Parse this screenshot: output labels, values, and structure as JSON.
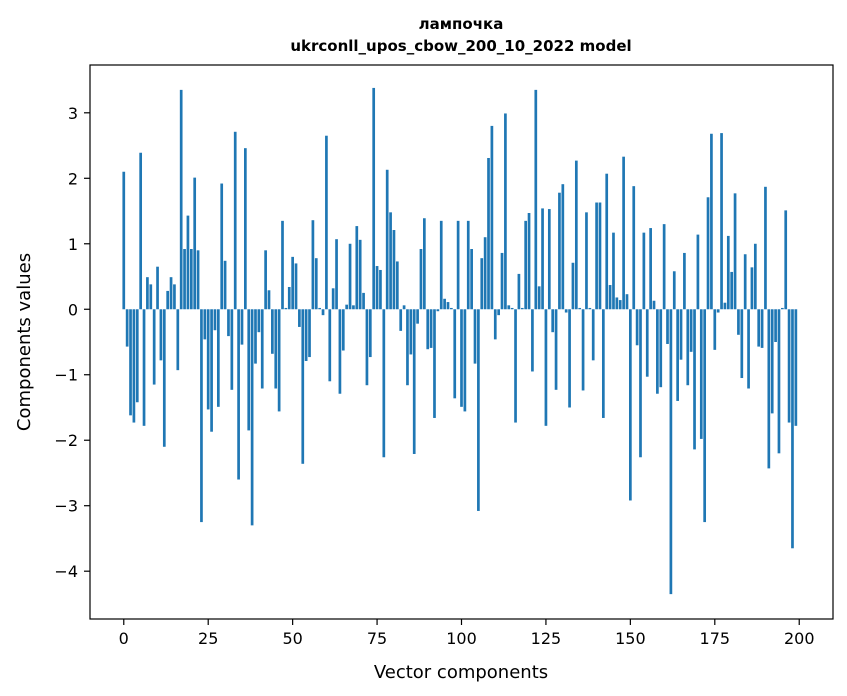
{
  "chart_data": {
    "type": "bar",
    "title_line1": "лампочка",
    "title_line2": "ukrconll_upos_cbow_200_10_2022 model",
    "xlabel": "Vector components",
    "ylabel": "Components values",
    "xlim": [
      -10,
      210
    ],
    "ylim": [
      -4.73,
      3.73
    ],
    "xticks": [
      0,
      25,
      50,
      75,
      100,
      125,
      150,
      175,
      200
    ],
    "yticks": [
      3,
      2,
      1,
      0,
      -1,
      -2,
      -3,
      -4
    ],
    "ytick_labels": [
      "3",
      "2",
      "1",
      "0",
      "−1",
      "−2",
      "−3",
      "−4"
    ],
    "grid": false,
    "bar_color": "#1f77b4",
    "values": [
      2.1,
      -0.57,
      -1.62,
      -1.73,
      -1.42,
      2.39,
      -1.78,
      0.49,
      0.38,
      -1.15,
      0.65,
      -0.78,
      -2.1,
      0.28,
      0.49,
      0.38,
      -0.93,
      3.35,
      0.92,
      1.43,
      0.92,
      2.01,
      0.9,
      -3.25,
      -0.46,
      -1.53,
      -1.87,
      -0.32,
      -1.49,
      1.92,
      0.74,
      -0.41,
      -1.23,
      2.71,
      -2.6,
      -0.54,
      2.46,
      -1.85,
      -3.3,
      -0.83,
      -0.35,
      -1.21,
      0.9,
      0.29,
      -0.68,
      -1.21,
      -1.56,
      1.35,
      0.02,
      0.34,
      0.8,
      0.7,
      -0.27,
      -2.36,
      -0.79,
      -0.73,
      1.36,
      0.78,
      0.02,
      -0.09,
      2.65,
      -1.1,
      0.32,
      1.07,
      -1.29,
      -0.63,
      0.07,
      1.0,
      0.06,
      1.27,
      1.06,
      0.25,
      -1.16,
      -0.73,
      3.38,
      0.66,
      0.6,
      -2.26,
      2.13,
      1.48,
      1.21,
      0.73,
      -0.33,
      0.06,
      -1.16,
      -0.69,
      -2.21,
      -0.22,
      0.92,
      1.39,
      -0.61,
      -0.59,
      -1.66,
      -0.03,
      1.35,
      0.16,
      0.11,
      0.02,
      -1.36,
      1.35,
      -1.49,
      -1.56,
      1.35,
      0.92,
      -0.83,
      -3.08,
      0.78,
      1.1,
      2.31,
      2.8,
      -0.46,
      -0.09,
      0.86,
      2.99,
      0.06,
      0.02,
      -1.73,
      0.54,
      0.02,
      1.35,
      1.47,
      -0.95,
      3.35,
      0.35,
      1.54,
      -1.78,
      1.53,
      -0.35,
      -1.23,
      1.78,
      1.91,
      -0.05,
      -1.5,
      0.71,
      2.27,
      0.02,
      -1.24,
      1.48,
      0.02,
      -0.78,
      1.63,
      1.63,
      -1.66,
      2.07,
      0.37,
      1.17,
      0.18,
      0.14,
      2.33,
      0.23,
      -2.92,
      1.88,
      -0.55,
      -2.26,
      1.17,
      -1.03,
      1.24,
      0.13,
      -1.29,
      -1.19,
      1.3,
      -0.53,
      -4.35,
      0.58,
      -1.4,
      -0.77,
      0.86,
      -1.16,
      -0.65,
      -2.14,
      1.14,
      -1.98,
      -3.25,
      1.71,
      2.68,
      -0.62,
      -0.05,
      2.69,
      0.1,
      1.12,
      0.57,
      1.77,
      -0.39,
      -1.05,
      0.84,
      -1.21,
      0.64,
      1.0,
      -0.57,
      -0.59,
      1.87,
      -2.43,
      -1.59,
      -0.5,
      -2.2,
      0.02,
      1.51,
      -1.73,
      -3.65,
      -1.78
    ]
  }
}
